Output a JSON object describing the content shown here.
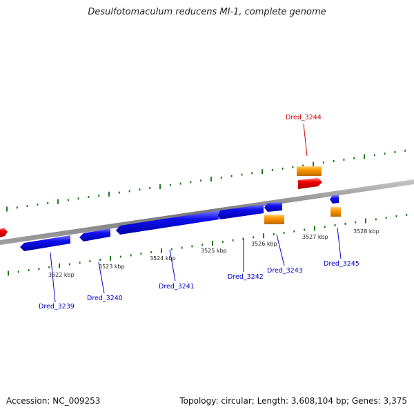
{
  "title": "Desulfotomaculum reducens MI-1, complete genome",
  "footer": {
    "accession": "Accession: NC_009253",
    "stats": "Topology: circular; Length: 3,608,104 bp; Genes: 3,375"
  },
  "colors": {
    "forward_strand": "#0000ee",
    "highlight": "#ee0000",
    "rna": "#ff9900",
    "backbone": "#888888",
    "ticks": "#1f7a1f"
  },
  "tick_labels": [
    "3522 kbp",
    "3523 kbp",
    "3524 kbp",
    "3525 kbp",
    "3526 kbp",
    "3527 kbp",
    "3528 kbp"
  ],
  "gene_labels": {
    "dred_3239": "Dred_3239",
    "dred_3240": "Dred_3240",
    "dred_3241": "Dred_3241",
    "dred_3242": "Dred_3242",
    "dred_3243": "Dred_3243",
    "dred_3244": "Dred_3244",
    "dred_3245": "Dred_3245"
  }
}
